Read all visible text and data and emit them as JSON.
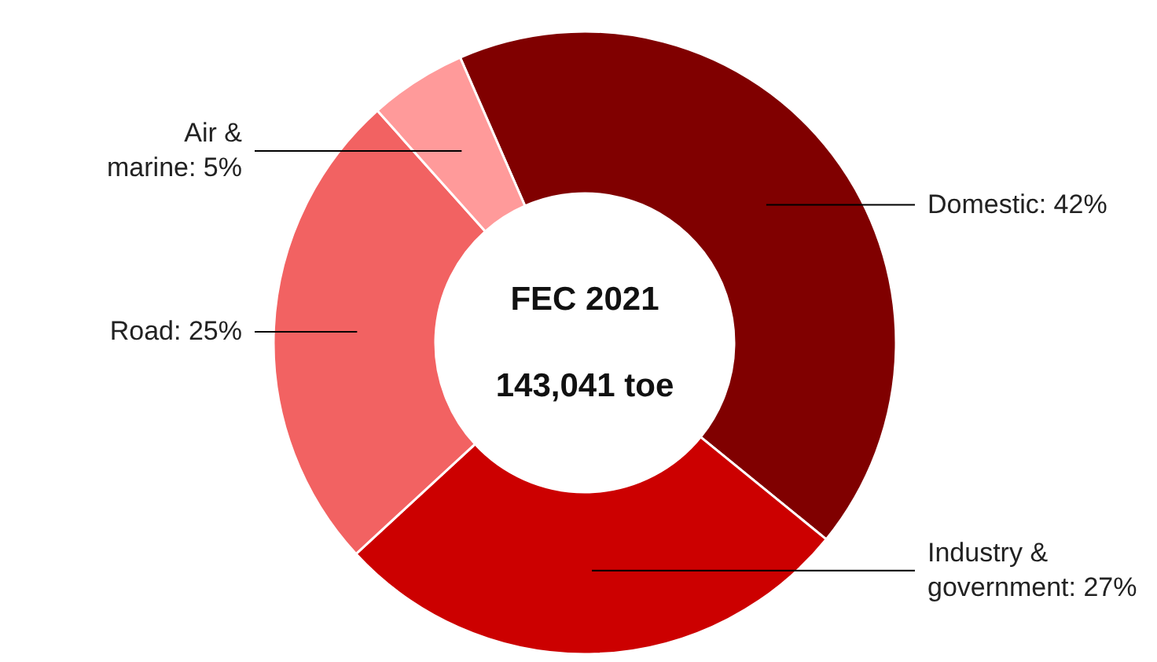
{
  "chart_data": {
    "type": "donut",
    "categories": [
      "Domestic",
      "Industry & government",
      "Road",
      "Air & marine"
    ],
    "values": [
      42,
      27,
      25,
      5
    ],
    "value_labels": [
      "42%",
      "27%",
      "25%",
      "5%"
    ],
    "colors": [
      "#800000",
      "#cc0000",
      "#f26262",
      "#ff9a9a"
    ],
    "annotations": [
      "FEC 2021",
      "143,041 toe"
    ]
  }
}
